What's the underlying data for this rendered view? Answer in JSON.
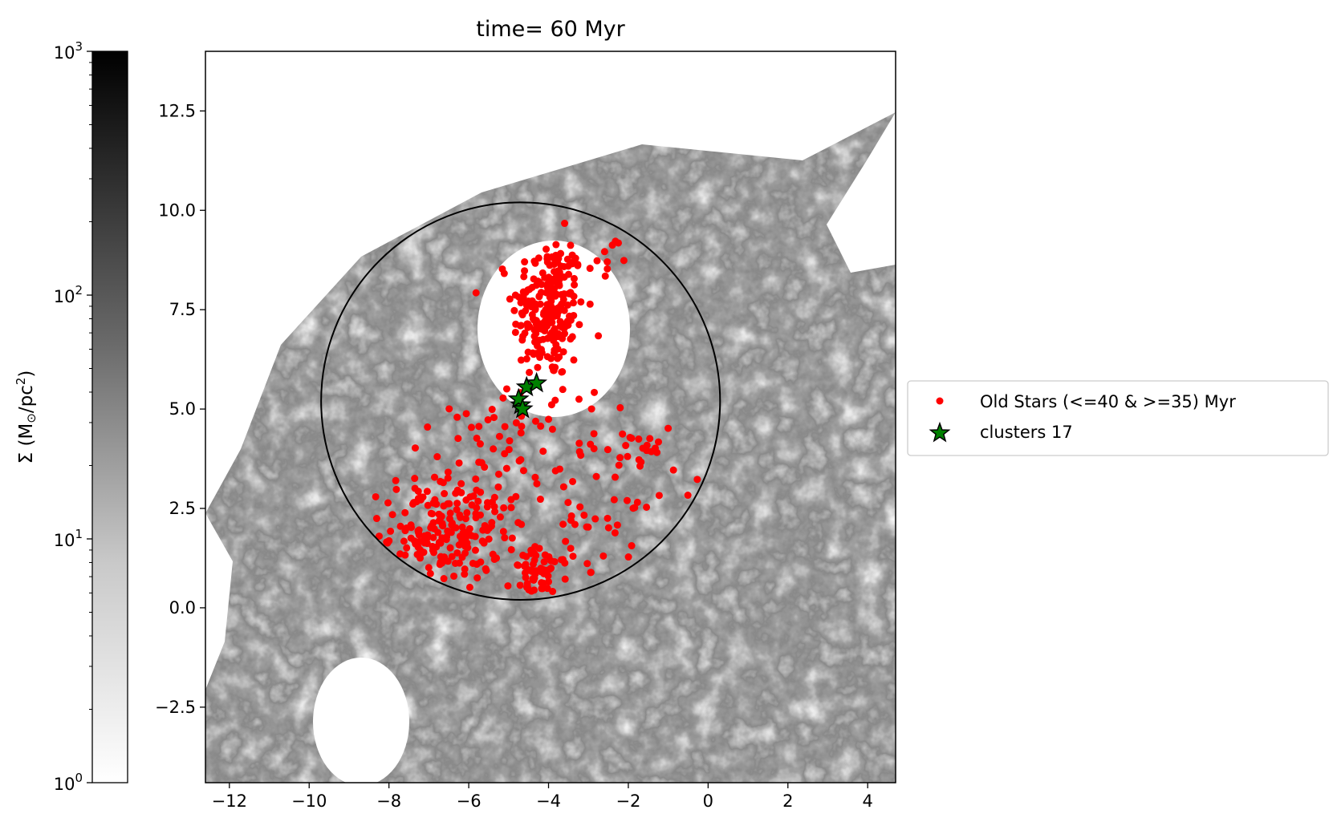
{
  "chart_data": {
    "type": "scatter",
    "title": "time= 60 Myr",
    "xlabel": "",
    "ylabel": "",
    "xlim": [
      -12.6,
      4.7
    ],
    "ylim": [
      -4.4,
      14.0
    ],
    "x_ticks": [
      -12,
      -10,
      -8,
      -6,
      -4,
      -2,
      0,
      2,
      4
    ],
    "x_tick_labels": [
      "−12",
      "−10",
      "−8",
      "−6",
      "−4",
      "−2",
      "0",
      "2",
      "4"
    ],
    "y_ticks": [
      -2.5,
      0.0,
      2.5,
      5.0,
      7.5,
      10.0,
      12.5
    ],
    "y_tick_labels": [
      "−2.5",
      "0.0",
      "2.5",
      "5.0",
      "7.5",
      "10.0",
      "12.5"
    ],
    "background": "gas surface density map (grayscale)",
    "circle": {
      "center": [
        -4.7,
        5.2
      ],
      "radius": 5.0,
      "color": "#000000"
    },
    "colorbar": {
      "label": "Σ (M☉/pc²)",
      "label_main": "Σ (M",
      "label_sub": "⊙",
      "label_mid": "/pc",
      "label_sup": "2",
      "label_end": ")",
      "scale": "log",
      "range": [
        1,
        1000
      ],
      "tick_labels": [
        {
          "value": 1000,
          "base": "10",
          "exp": "3"
        },
        {
          "value": 100,
          "base": "10",
          "exp": "2"
        },
        {
          "value": 10,
          "base": "10",
          "exp": "1"
        },
        {
          "value": 1,
          "base": "10",
          "exp": "0"
        }
      ],
      "colormap": [
        "#ffffff",
        "#000000"
      ]
    },
    "legend": {
      "placement": "outside-right",
      "entries": [
        {
          "label": "Old Stars (<=40 & >=35) Myr",
          "marker": "dot",
          "color": "#ff0000"
        },
        {
          "label": "clusters 17",
          "marker": "star",
          "color": "#008000"
        }
      ]
    },
    "series": [
      {
        "name": "Old Stars (<=40 & >=35) Myr",
        "color": "#ff0000",
        "clusters": [
          {
            "cx": -4.0,
            "cy": 7.5,
            "sx": 0.45,
            "sy": 0.9,
            "n": 230
          },
          {
            "cx": -6.7,
            "cy": 1.9,
            "sx": 0.75,
            "sy": 0.75,
            "n": 210
          },
          {
            "cx": -4.2,
            "cy": 0.8,
            "sx": 0.35,
            "sy": 0.35,
            "n": 60
          },
          {
            "cx": -3.2,
            "cy": 2.6,
            "sx": 1.4,
            "sy": 1.2,
            "n": 90
          },
          {
            "cx": -4.6,
            "cy": 4.6,
            "sx": 1.2,
            "sy": 0.6,
            "n": 40
          },
          {
            "cx": -2.5,
            "cy": 8.9,
            "sx": 0.4,
            "sy": 0.35,
            "n": 14
          },
          {
            "cx": -1.5,
            "cy": 4.1,
            "sx": 0.2,
            "sy": 0.1,
            "n": 10
          }
        ]
      },
      {
        "name": "clusters 17",
        "color": "#008000",
        "points": [
          [
            -4.7,
            5.1
          ],
          [
            -4.75,
            5.25
          ],
          [
            -4.55,
            5.55
          ],
          [
            -4.3,
            5.65
          ],
          [
            -4.65,
            5.0
          ]
        ]
      }
    ]
  }
}
